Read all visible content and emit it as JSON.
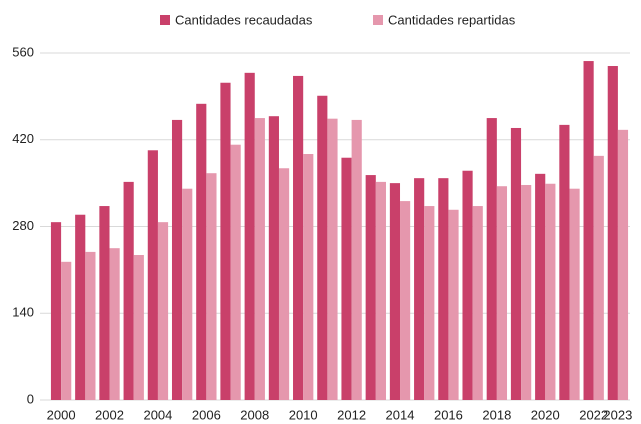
{
  "chart_data": {
    "type": "bar",
    "categories": [
      "2000",
      null,
      "2002",
      null,
      "2004",
      null,
      "2006",
      null,
      "2008",
      null,
      "2010",
      null,
      "2012",
      null,
      "2014",
      null,
      "2016",
      null,
      "2018",
      null,
      "2020",
      null,
      "2022",
      "2023"
    ],
    "series": [
      {
        "name": "Cantidades recaudadas",
        "color": "#c9406a",
        "values": [
          287,
          299,
          313,
          352,
          403,
          452,
          478,
          512,
          528,
          458,
          523,
          491,
          391,
          363,
          350,
          358,
          358,
          370,
          455,
          439,
          365,
          444,
          547,
          539
        ]
      },
      {
        "name": "Cantidades repartidas",
        "color": "#e597ad",
        "values": [
          223,
          239,
          245,
          234,
          287,
          341,
          366,
          412,
          455,
          374,
          397,
          454,
          452,
          352,
          321,
          313,
          307,
          313,
          345,
          347,
          349,
          341,
          394,
          436
        ]
      }
    ],
    "ylim": [
      0,
      560
    ],
    "yticks": [
      0,
      140,
      280,
      420,
      560
    ],
    "grid": true,
    "legend": "top"
  }
}
